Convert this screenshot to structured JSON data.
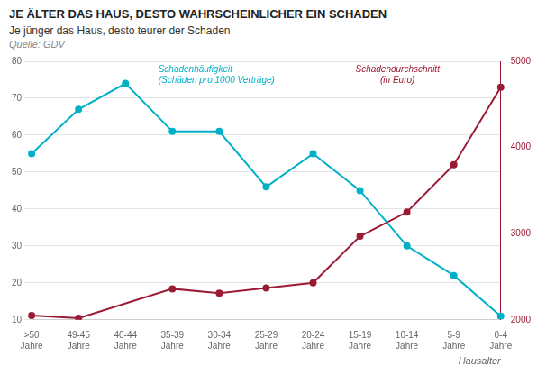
{
  "chart_data": {
    "type": "line",
    "title": "JE ÄLTER DAS HAUS, DESTO WAHRSCHEINLICHER EIN SCHADEN",
    "subtitle": "Je jünger das Haus, desto teurer der Schaden",
    "source": "Quelle: GDV",
    "xlabel": "Hausalter",
    "categories": [
      ">50\nJahre",
      "49-45\nJahre",
      "40-44\nJahre",
      "35-39\nJahre",
      "30-34\nJahre",
      "25-29\nJahre",
      "20-24\nJahre",
      "15-19\nJahre",
      "10-14\nJahre",
      "5-9\nJahre",
      "0-4\nJahre"
    ],
    "series": [
      {
        "color": "#00B0C8",
        "values": [
          55,
          67,
          74,
          61,
          61,
          46,
          55,
          45,
          30,
          22,
          11
        ]
      },
      {
        "color": "#9B1B34",
        "axis": "y2",
        "values": [
          2050,
          2020,
          null,
          2360,
          2310,
          2370,
          2430,
          2970,
          3250,
          3800,
          4700
        ]
      }
    ],
    "annotations": [
      {
        "text": "Schadenhäufigkeit\n(Schäden pro 1000 Verträge)",
        "color": "#00B0C8"
      },
      {
        "text": "Schadendurchschnitt\n(in Euro)",
        "color": "#9B1B34"
      }
    ],
    "ylim": [
      10,
      80
    ],
    "yticks": [
      10,
      20,
      30,
      40,
      50,
      60,
      70,
      80
    ],
    "y2lim": [
      2000,
      5000
    ],
    "y2ticks": [
      2000,
      3000,
      4000,
      5000
    ],
    "grid": true
  }
}
